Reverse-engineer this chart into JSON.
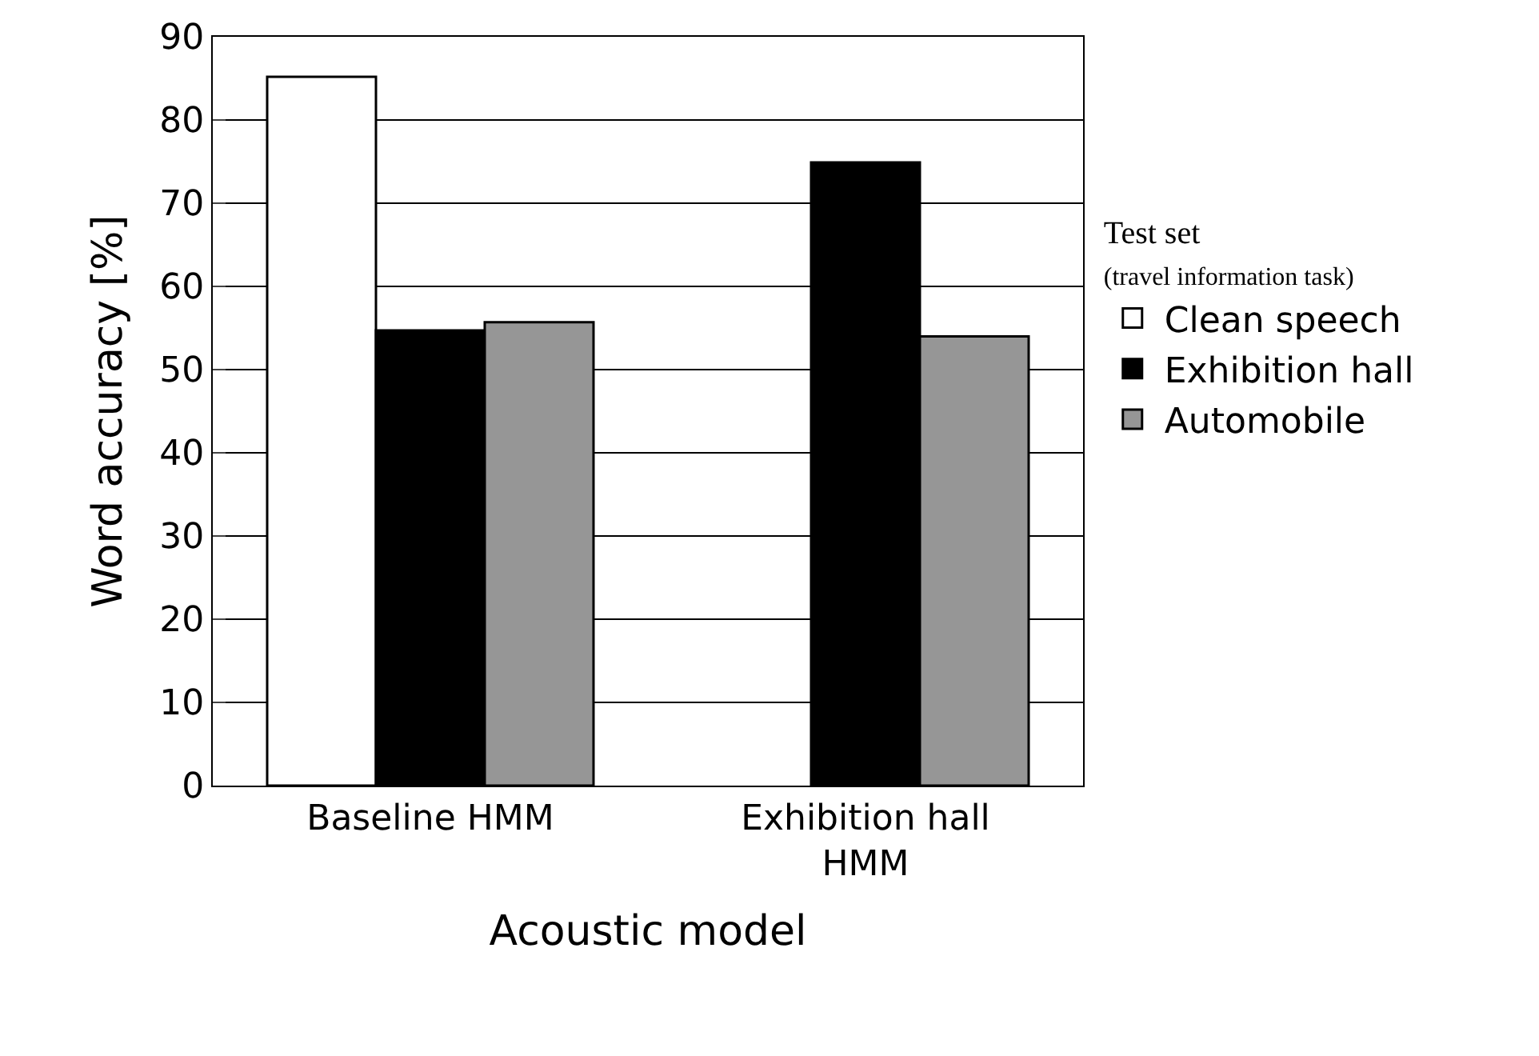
{
  "chart_data": {
    "type": "bar",
    "xlabel": "Acoustic model",
    "ylabel": "Word accuracy [%]",
    "legend_title": "Test set\n(travel information task)",
    "categories": [
      "Baseline HMM",
      "Exhibition hall\nHMM"
    ],
    "series": [
      {
        "name": "Clean speech",
        "color": "#ffffff",
        "values": [
          85.2,
          null
        ]
      },
      {
        "name": "Exhibition hall",
        "color": "#000000",
        "values": [
          54.7,
          74.9
        ]
      },
      {
        "name": "Automobile",
        "color": "#969696",
        "values": [
          55.7,
          54.0
        ]
      }
    ],
    "ylim": [
      0,
      90
    ],
    "yticks": [
      0,
      10,
      20,
      30,
      40,
      50,
      60,
      70,
      80,
      90
    ],
    "grid": "y",
    "legend": "right"
  }
}
